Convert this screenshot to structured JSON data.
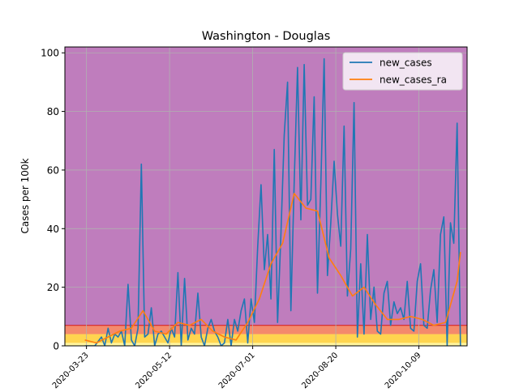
{
  "chart_data": {
    "type": "line",
    "title": "Washington - Douglas",
    "xlabel": "",
    "ylabel": "Cases per 100k",
    "x_tick_labels": [
      "2020-03-23",
      "2020-05-12",
      "2020-07-01",
      "2020-08-20",
      "2020-10-09"
    ],
    "y_ticks": [
      0,
      20,
      40,
      60,
      80,
      100
    ],
    "ylim": [
      0,
      102
    ],
    "xlim": [
      "2020-03-10",
      "2020-11-07"
    ],
    "grid": true,
    "legend_position": "top-right",
    "background_bands": [
      {
        "from": 0,
        "to": 1,
        "color": "#fff59d"
      },
      {
        "from": 1,
        "to": 4,
        "color": "#ffd54f"
      },
      {
        "from": 4,
        "to": 7,
        "color": "#f48a6c"
      },
      {
        "from": 7,
        "to": 102,
        "color": "#bf7dbd"
      }
    ],
    "band_boundary_line": {
      "value": 7,
      "color": "#d62728"
    },
    "series": [
      {
        "name": "new_cases",
        "color": "#1f77b4",
        "x": [
          "2020-03-22",
          "2020-03-28",
          "2020-04-01",
          "2020-04-03",
          "2020-04-05",
          "2020-04-07",
          "2020-04-09",
          "2020-04-11",
          "2020-04-13",
          "2020-04-15",
          "2020-04-17",
          "2020-04-19",
          "2020-04-21",
          "2020-04-23",
          "2020-04-25",
          "2020-04-27",
          "2020-04-29",
          "2020-05-01",
          "2020-05-03",
          "2020-05-05",
          "2020-05-07",
          "2020-05-09",
          "2020-05-11",
          "2020-05-13",
          "2020-05-15",
          "2020-05-17",
          "2020-05-19",
          "2020-05-21",
          "2020-05-23",
          "2020-05-25",
          "2020-05-27",
          "2020-05-29",
          "2020-05-31",
          "2020-06-02",
          "2020-06-04",
          "2020-06-06",
          "2020-06-08",
          "2020-06-10",
          "2020-06-12",
          "2020-06-14",
          "2020-06-16",
          "2020-06-18",
          "2020-06-20",
          "2020-06-22",
          "2020-06-24",
          "2020-06-26",
          "2020-06-28",
          "2020-06-30",
          "2020-07-02",
          "2020-07-04",
          "2020-07-06",
          "2020-07-08",
          "2020-07-10",
          "2020-07-12",
          "2020-07-14",
          "2020-07-16",
          "2020-07-18",
          "2020-07-20",
          "2020-07-22",
          "2020-07-24",
          "2020-07-26",
          "2020-07-28",
          "2020-07-30",
          "2020-08-01",
          "2020-08-03",
          "2020-08-05",
          "2020-08-07",
          "2020-08-09",
          "2020-08-11",
          "2020-08-13",
          "2020-08-15",
          "2020-08-17",
          "2020-08-19",
          "2020-08-21",
          "2020-08-23",
          "2020-08-25",
          "2020-08-27",
          "2020-08-29",
          "2020-08-31",
          "2020-09-02",
          "2020-09-04",
          "2020-09-06",
          "2020-09-08",
          "2020-09-10",
          "2020-09-12",
          "2020-09-14",
          "2020-09-16",
          "2020-09-18",
          "2020-09-20",
          "2020-09-22",
          "2020-09-24",
          "2020-09-26",
          "2020-09-28",
          "2020-09-30",
          "2020-10-02",
          "2020-10-04",
          "2020-10-06",
          "2020-10-08",
          "2020-10-10",
          "2020-10-12",
          "2020-10-14",
          "2020-10-16",
          "2020-10-18",
          "2020-10-20",
          "2020-10-22",
          "2020-10-24",
          "2020-10-26",
          "2020-10-28",
          "2020-10-30",
          "2020-11-01",
          "2020-11-03"
        ],
        "y": [
          0,
          0,
          3,
          0,
          6,
          1,
          4,
          3,
          5,
          0,
          21,
          2,
          0,
          6,
          62,
          3,
          4,
          13,
          0,
          4,
          5,
          3,
          1,
          6,
          3,
          25,
          0,
          23,
          2,
          6,
          4,
          18,
          3,
          0,
          6,
          9,
          5,
          3,
          0,
          1,
          9,
          0,
          9,
          5,
          12,
          16,
          1,
          16,
          8,
          34,
          55,
          26,
          38,
          16,
          67,
          8,
          38,
          72,
          90,
          12,
          56,
          95,
          43,
          96,
          48,
          50,
          85,
          18,
          55,
          98,
          24,
          42,
          63,
          45,
          34,
          75,
          17,
          33,
          83,
          3,
          28,
          4,
          38,
          9,
          20,
          5,
          4,
          18,
          22,
          7,
          15,
          11,
          13,
          9,
          22,
          6,
          5,
          22,
          28,
          7,
          6,
          19,
          26,
          8,
          38,
          44,
          0,
          42,
          35,
          76,
          0
        ],
        "values_note": ""
      },
      {
        "name": "new_cases_ra",
        "color": "#ff7f0e",
        "x": [
          "2020-03-22",
          "2020-03-29",
          "2020-04-05",
          "2020-04-12",
          "2020-04-19",
          "2020-04-26",
          "2020-05-03",
          "2020-05-10",
          "2020-05-17",
          "2020-05-24",
          "2020-05-31",
          "2020-06-07",
          "2020-06-14",
          "2020-06-21",
          "2020-06-28",
          "2020-07-05",
          "2020-07-12",
          "2020-07-19",
          "2020-07-26",
          "2020-08-02",
          "2020-08-09",
          "2020-08-16",
          "2020-08-23",
          "2020-08-30",
          "2020-09-06",
          "2020-09-13",
          "2020-09-20",
          "2020-09-27",
          "2020-10-04",
          "2020-10-11",
          "2020-10-18",
          "2020-10-25",
          "2020-11-01",
          "2020-11-03"
        ],
        "y": [
          2,
          1,
          3,
          5,
          6,
          12,
          5,
          4,
          8,
          7,
          9,
          5,
          3,
          2,
          8,
          16,
          28,
          35,
          52,
          47,
          46,
          30,
          24,
          17,
          20,
          14,
          9,
          9,
          10,
          9,
          7,
          8,
          22,
          32
        ]
      }
    ]
  }
}
